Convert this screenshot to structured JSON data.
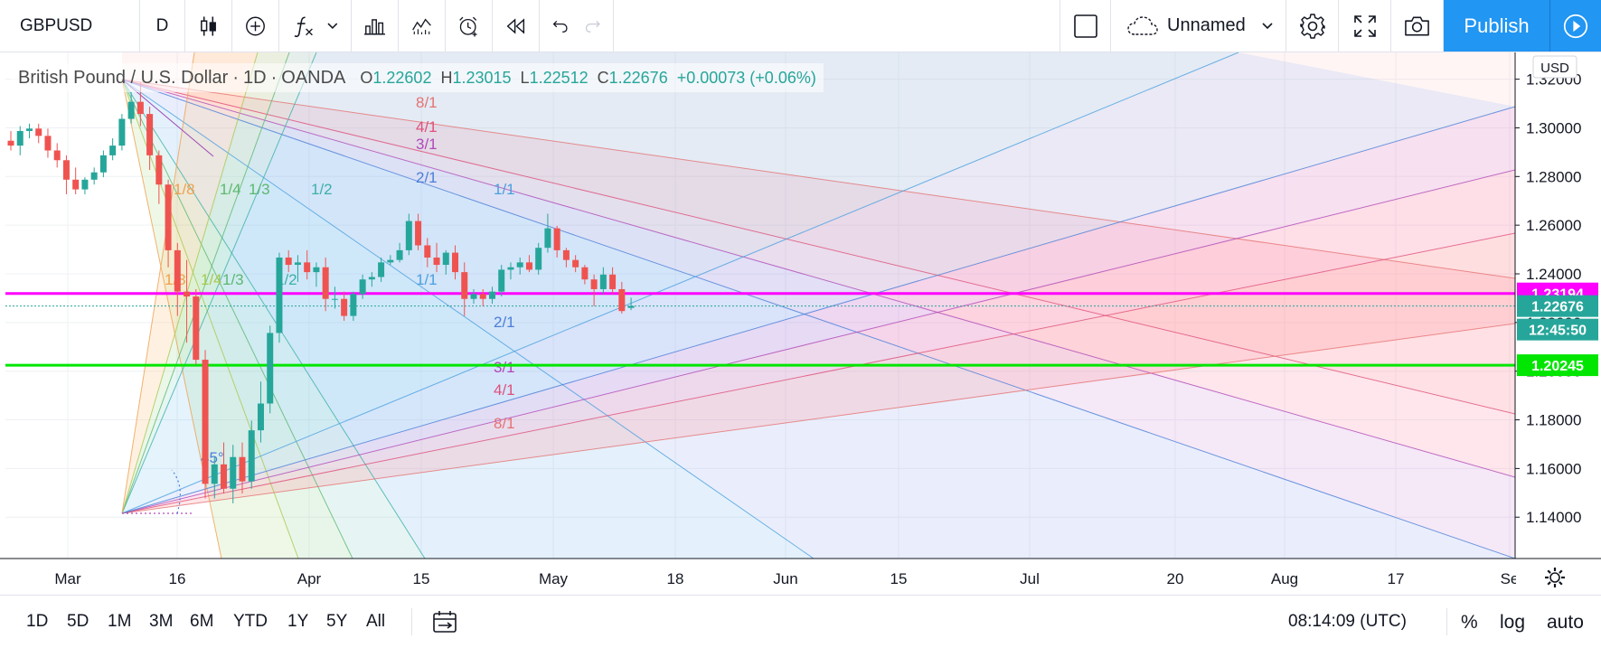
{
  "toolbar": {
    "symbol": "GBPUSD",
    "interval": "D",
    "layout_name": "Unnamed",
    "publish_label": "Publish"
  },
  "legend": {
    "title": "British Pound / U.S. Dollar",
    "interval": "1D",
    "source": "OANDA",
    "open_label": "O",
    "open": "1.22602",
    "high_label": "H",
    "high": "1.23015",
    "low_label": "L",
    "low": "1.22512",
    "close_label": "C",
    "close": "1.22676",
    "change": "+0.00073 (+0.06%)"
  },
  "chart_data": {
    "type": "candlestick",
    "symbol": "GBPUSD",
    "currency": "USD",
    "ylim": [
      1.123,
      1.331
    ],
    "y_ticks": [
      "1.14000",
      "1.16000",
      "1.18000",
      "1.20000",
      "1.22000",
      "1.24000",
      "1.26000",
      "1.28000",
      "1.30000",
      "1.32000"
    ],
    "x_tick_labels": [
      "Mar",
      "16",
      "Apr",
      "15",
      "May",
      "18",
      "Jun",
      "15",
      "Jul",
      "20",
      "Aug",
      "17",
      "Se"
    ],
    "price_labels": [
      {
        "value": 1.23194,
        "text": "1.23194",
        "color": "#ff00ff"
      },
      {
        "value": 1.22676,
        "text": "1.22676",
        "color": "#26a69a"
      },
      {
        "text": "12:45:50",
        "color": "#26a69a"
      },
      {
        "value": 1.20245,
        "text": "1.20245",
        "color": "#00e600"
      }
    ],
    "horizontal_lines": [
      {
        "value": 1.23194,
        "color": "#ff00ff"
      },
      {
        "value": 1.20245,
        "color": "#00e600"
      }
    ],
    "candles": [
      [
        1.2947,
        1.2987,
        1.2907,
        1.2927
      ],
      [
        1.2927,
        1.3007,
        1.2887,
        1.2987
      ],
      [
        1.2987,
        1.3017,
        1.2957,
        1.2997
      ],
      [
        1.2997,
        1.3017,
        1.2937,
        1.2967
      ],
      [
        1.2967,
        1.2997,
        1.2877,
        1.2907
      ],
      [
        1.2907,
        1.2937,
        1.2837,
        1.2867
      ],
      [
        1.2867,
        1.2887,
        1.2727,
        1.2787
      ],
      [
        1.2787,
        1.2837,
        1.2727,
        1.2747
      ],
      [
        1.2747,
        1.2797,
        1.2727,
        1.2787
      ],
      [
        1.2787,
        1.2837,
        1.2767,
        1.2817
      ],
      [
        1.2817,
        1.2907,
        1.2797,
        1.2887
      ],
      [
        1.2887,
        1.2957,
        1.2867,
        1.2927
      ],
      [
        1.2927,
        1.3057,
        1.2907,
        1.3037
      ],
      [
        1.3037,
        1.3147,
        1.3017,
        1.3107
      ],
      [
        1.3107,
        1.3187,
        1.3007,
        1.3057
      ],
      [
        1.3057,
        1.3087,
        1.2827,
        1.2887
      ],
      [
        1.2887,
        1.2907,
        1.2687,
        1.2767
      ],
      [
        1.2767,
        1.2787,
        1.2427,
        1.2497
      ],
      [
        1.2497,
        1.2527,
        1.2227,
        1.2327
      ],
      [
        1.2327,
        1.2457,
        1.2117,
        1.2307
      ],
      [
        1.2307,
        1.2337,
        1.2027,
        1.2047
      ],
      [
        1.2047,
        1.2087,
        1.1477,
        1.1537
      ],
      [
        1.1537,
        1.1647,
        1.1477,
        1.1617
      ],
      [
        1.1617,
        1.1707,
        1.1497,
        1.1517
      ],
      [
        1.1517,
        1.1697,
        1.1457,
        1.1647
      ],
      [
        1.1647,
        1.1707,
        1.1497,
        1.1547
      ],
      [
        1.1547,
        1.1797,
        1.1517,
        1.1757
      ],
      [
        1.1757,
        1.1957,
        1.1707,
        1.1867
      ],
      [
        1.1867,
        1.2187,
        1.1827,
        1.2157
      ],
      [
        1.2157,
        1.2487,
        1.2117,
        1.2467
      ],
      [
        1.2467,
        1.2497,
        1.2407,
        1.2437
      ],
      [
        1.2437,
        1.2477,
        1.2367,
        1.2447
      ],
      [
        1.2447,
        1.2497,
        1.2377,
        1.2407
      ],
      [
        1.2407,
        1.2447,
        1.2347,
        1.2427
      ],
      [
        1.2427,
        1.2467,
        1.2247,
        1.2297
      ],
      [
        1.2297,
        1.2347,
        1.2257,
        1.2297
      ],
      [
        1.2297,
        1.2327,
        1.2207,
        1.2227
      ],
      [
        1.2227,
        1.2327,
        1.2207,
        1.2317
      ],
      [
        1.2317,
        1.2397,
        1.2297,
        1.2377
      ],
      [
        1.2377,
        1.2407,
        1.2347,
        1.2387
      ],
      [
        1.2387,
        1.2467,
        1.2367,
        1.2447
      ],
      [
        1.2447,
        1.2477,
        1.2437,
        1.2457
      ],
      [
        1.2457,
        1.2527,
        1.2447,
        1.2497
      ],
      [
        1.2497,
        1.2647,
        1.2477,
        1.2617
      ],
      [
        1.2617,
        1.2647,
        1.2497,
        1.2517
      ],
      [
        1.2517,
        1.2547,
        1.2427,
        1.2467
      ],
      [
        1.2467,
        1.2527,
        1.2407,
        1.2437
      ],
      [
        1.2437,
        1.2497,
        1.2397,
        1.2487
      ],
      [
        1.2487,
        1.2517,
        1.2377,
        1.2407
      ],
      [
        1.2407,
        1.2447,
        1.2227,
        1.2297
      ],
      [
        1.2297,
        1.2337,
        1.2277,
        1.2317
      ],
      [
        1.2317,
        1.2337,
        1.2267,
        1.2297
      ],
      [
        1.2297,
        1.2347,
        1.2277,
        1.2327
      ],
      [
        1.2327,
        1.2437,
        1.2307,
        1.2417
      ],
      [
        1.2417,
        1.2447,
        1.2377,
        1.2427
      ],
      [
        1.2427,
        1.2467,
        1.2397,
        1.2447
      ],
      [
        1.2447,
        1.2477,
        1.2407,
        1.2417
      ],
      [
        1.2417,
        1.2527,
        1.2397,
        1.2507
      ],
      [
        1.2507,
        1.2647,
        1.2487,
        1.2587
      ],
      [
        1.2587,
        1.2597,
        1.2467,
        1.2497
      ],
      [
        1.2497,
        1.2507,
        1.2427,
        1.2457
      ],
      [
        1.2457,
        1.2477,
        1.2407,
        1.2427
      ],
      [
        1.2427,
        1.2437,
        1.2357,
        1.2377
      ],
      [
        1.2377,
        1.2397,
        1.2267,
        1.2337
      ],
      [
        1.2337,
        1.2427,
        1.2317,
        1.2397
      ],
      [
        1.2397,
        1.2427,
        1.2317,
        1.2337
      ],
      [
        1.2337,
        1.2367,
        1.2237,
        1.2247
      ],
      [
        1.226,
        1.2302,
        1.2251,
        1.2268
      ]
    ],
    "gann_fan_top_labels": [
      "8/1",
      "4/1",
      "3/1",
      "2/1",
      "1/1",
      "1/2",
      "1/3",
      "1/4",
      "1/8"
    ],
    "gann_fan_bottom_labels": [
      "1/8",
      "1/4",
      "1/3",
      "1/2",
      "1/1",
      "2/1",
      "3/1",
      "4/1",
      "8/1"
    ],
    "gann_angle_label": "45°"
  },
  "colors": {
    "up": "#26a69a",
    "down": "#ef5350",
    "accent": "#2196f3"
  },
  "bottom": {
    "ranges": [
      "1D",
      "5D",
      "1M",
      "3M",
      "6M",
      "YTD",
      "1Y",
      "5Y",
      "All"
    ],
    "clock": "08:14:09 (UTC)",
    "percent": "%",
    "log": "log",
    "auto": "auto"
  }
}
